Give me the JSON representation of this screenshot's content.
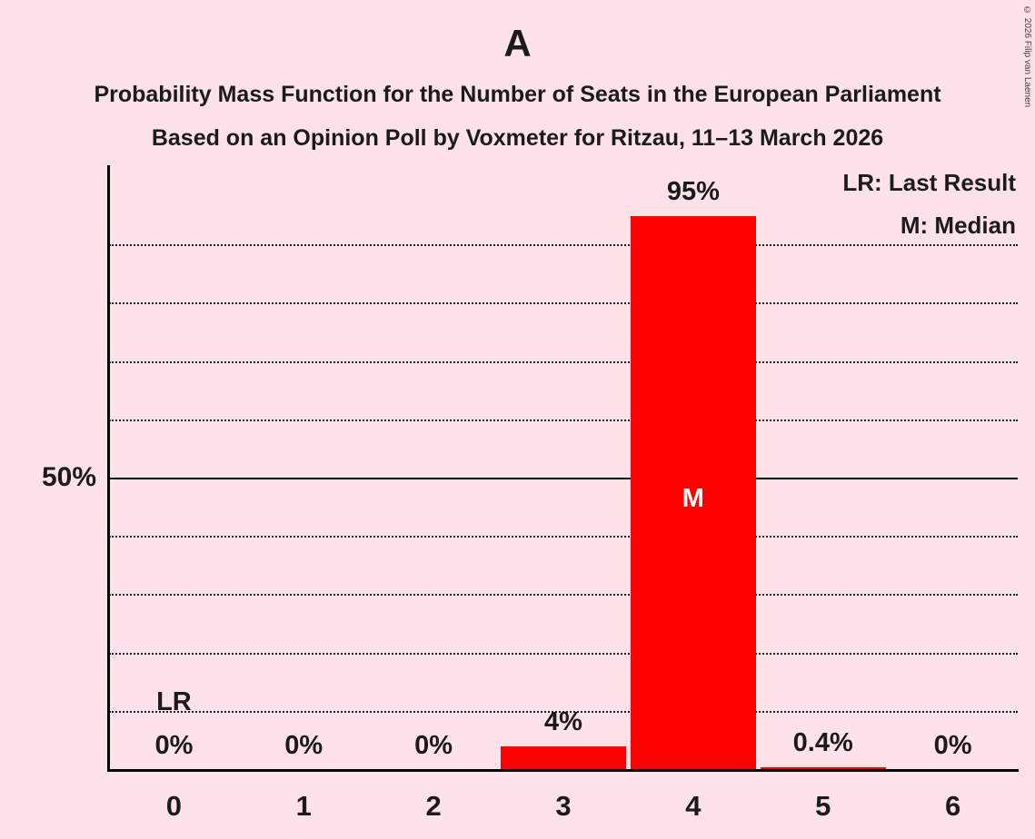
{
  "chart_data": {
    "type": "bar",
    "title": "A",
    "subtitle_line1": "Probability Mass Function for the Number of Seats in the European Parliament",
    "subtitle_line2": "Based on an Opinion Poll by Voxmeter for Ritzau, 11–13 March 2026",
    "categories": [
      "0",
      "1",
      "2",
      "3",
      "4",
      "5",
      "6"
    ],
    "values": [
      0,
      0,
      0,
      4,
      95,
      0.4,
      0
    ],
    "bar_labels": [
      "0%",
      "0%",
      "0%",
      "4%",
      "95%",
      "0.4%",
      "0%"
    ],
    "xlabel": "",
    "ylabel": "50%",
    "ylim": [
      0,
      100
    ],
    "y_reference_pct": 50,
    "gridlines_pct": [
      10,
      20,
      30,
      40,
      60,
      70,
      80,
      90
    ],
    "grid": "dotted horizontal lines every 10%, solid line at 50%",
    "legend": [
      "LR: Last Result",
      "M: Median"
    ],
    "legend_position": "top-right",
    "median": {
      "index": 4,
      "label": "M"
    },
    "last_result": {
      "index": 0,
      "label": "LR"
    },
    "copyright": "© 2026 Filip van Laenen",
    "colors": {
      "background": "#fde2e7",
      "bar": "#ff0000",
      "text": "#1b1b1b",
      "median_text": "#ffffff",
      "axis": "#000000"
    }
  }
}
